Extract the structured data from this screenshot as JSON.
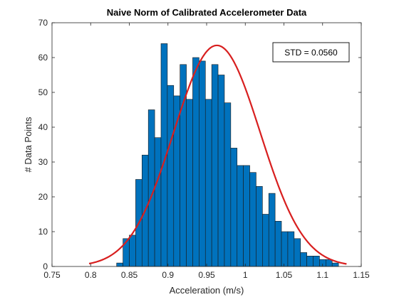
{
  "chart_data": {
    "type": "bar",
    "title": "Naive Norm of Calibrated Accelerometer Data",
    "xlabel": "Acceleration (m/s)",
    "ylabel": "# Data Points",
    "annotation": "STD = 0.0560",
    "xlim": [
      0.75,
      1.15
    ],
    "ylim": [
      0,
      70
    ],
    "xticks": [
      0.75,
      0.8,
      0.85,
      0.9,
      0.95,
      1.0,
      1.05,
      1.1,
      1.15
    ],
    "xtick_labels": [
      "0.75",
      "0.8",
      "0.85",
      "0.9",
      "0.95",
      "1",
      "1.05",
      "1.1",
      "1.15"
    ],
    "yticks": [
      0,
      10,
      20,
      30,
      40,
      50,
      60,
      70
    ],
    "ytick_labels": [
      "0",
      "10",
      "20",
      "30",
      "40",
      "50",
      "60",
      "70"
    ],
    "grid": false,
    "bin_edges": [
      0.8336,
      0.8418,
      0.85,
      0.8582,
      0.8664,
      0.8746,
      0.8828,
      0.891,
      0.8992,
      0.9074,
      0.9156,
      0.9238,
      0.932,
      0.9402,
      0.9484,
      0.9566,
      0.9648,
      0.973,
      0.9812,
      0.9894,
      0.9976,
      1.0058,
      1.014,
      1.0222,
      1.0304,
      1.0386,
      1.0468,
      1.055,
      1.0632,
      1.0714,
      1.0796,
      1.0878,
      1.096,
      1.1042,
      1.1124,
      1.1206
    ],
    "values": [
      1,
      8,
      9,
      25,
      32,
      45,
      37,
      64,
      52,
      49,
      58,
      48,
      60,
      59,
      48,
      58,
      55,
      47,
      34,
      29,
      29,
      27,
      23,
      15,
      21,
      13,
      10,
      10,
      8,
      4,
      3,
      3,
      2,
      2,
      1
    ],
    "fit_curve": {
      "type": "normal",
      "mean": 0.9633,
      "std": 0.056,
      "peak": 63.5,
      "x_range": [
        0.798,
        1.131
      ]
    },
    "colors": {
      "bars": "#0072BD",
      "bar_edge": "#1a1a1a",
      "curve": "#D81F1F",
      "axes": "#262626"
    }
  }
}
